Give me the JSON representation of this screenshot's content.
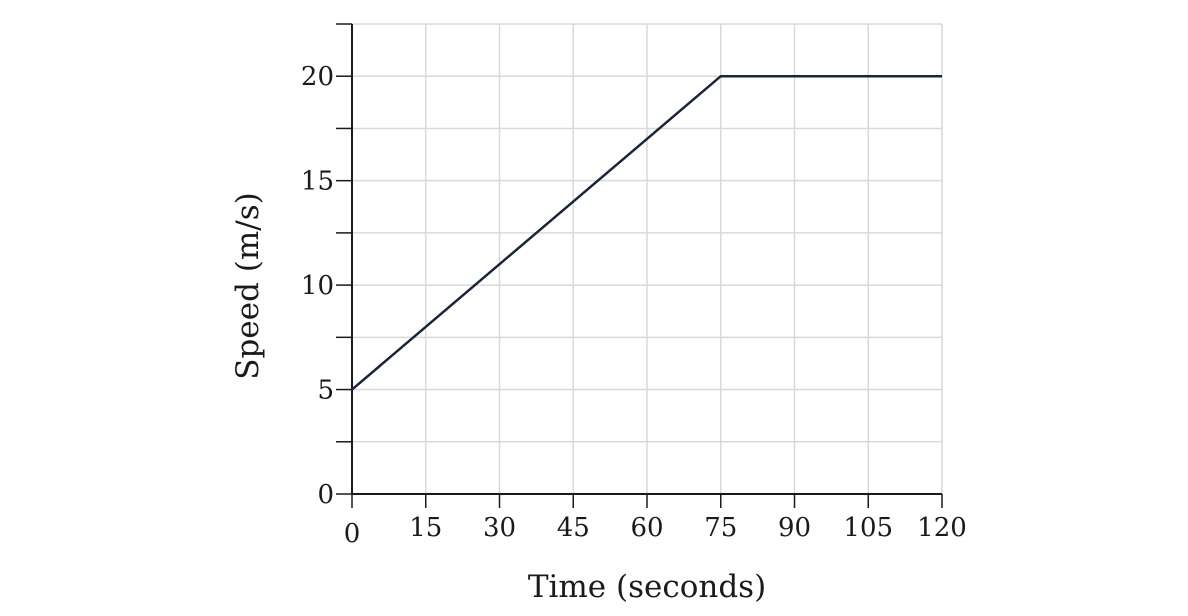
{
  "chart_data": {
    "type": "line",
    "title": "",
    "xlabel": "Time (seconds)",
    "ylabel": "Speed (m/s)",
    "xlim": [
      0,
      120
    ],
    "ylim": [
      0,
      22.5
    ],
    "x_ticks": [
      0,
      15,
      30,
      45,
      60,
      75,
      90,
      105,
      120
    ],
    "x_tick_labels": [
      "0",
      "15",
      "30",
      "45",
      "60",
      "75",
      "90",
      "105",
      "120"
    ],
    "y_ticks": [
      0,
      5,
      10,
      15,
      20
    ],
    "y_tick_labels": [
      "0",
      "5",
      "10",
      "15",
      "20"
    ],
    "y_minor_step": 2.5,
    "grid": true,
    "series": [
      {
        "x": [
          0,
          75,
          120
        ],
        "y": [
          5,
          20,
          20
        ]
      }
    ],
    "colors": {
      "line": "#17263a",
      "grid": "#d9d9d9",
      "axis": "#1a1a1a"
    }
  }
}
